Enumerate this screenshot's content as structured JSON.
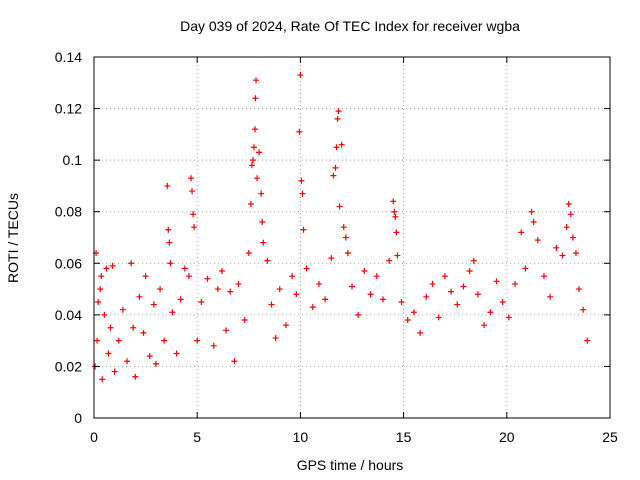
{
  "chart_data": {
    "type": "scatter",
    "title": "Day 039 of 2024, Rate Of TEC Index for receiver wgba",
    "xlabel": "GPS time / hours",
    "ylabel": "ROTI / TECUs",
    "xlim": [
      0,
      25
    ],
    "ylim": [
      0,
      0.14
    ],
    "x_ticks": [
      0,
      5,
      10,
      15,
      20,
      25
    ],
    "y_ticks": [
      0,
      0.02,
      0.04,
      0.06,
      0.08,
      0.1,
      0.12,
      0.14
    ],
    "x_tick_labels": [
      "0",
      "5",
      "10",
      "15",
      "20",
      "25"
    ],
    "y_tick_labels": [
      "0",
      "0.02",
      "0.04",
      "0.06",
      "0.08",
      "0.1",
      "0.12",
      "0.14"
    ],
    "grid": true,
    "marker": "+",
    "color": "#ff0000",
    "series": [
      {
        "name": "ROTI",
        "points": [
          [
            0.05,
            0.02
          ],
          [
            0.1,
            0.064
          ],
          [
            0.15,
            0.03
          ],
          [
            0.2,
            0.045
          ],
          [
            0.3,
            0.05
          ],
          [
            0.35,
            0.055
          ],
          [
            0.4,
            0.015
          ],
          [
            0.5,
            0.04
          ],
          [
            0.6,
            0.058
          ],
          [
            0.7,
            0.025
          ],
          [
            0.8,
            0.035
          ],
          [
            0.9,
            0.059
          ],
          [
            1.0,
            0.018
          ],
          [
            1.2,
            0.03
          ],
          [
            1.4,
            0.042
          ],
          [
            1.6,
            0.022
          ],
          [
            1.8,
            0.06
          ],
          [
            1.9,
            0.035
          ],
          [
            2.0,
            0.016
          ],
          [
            2.2,
            0.047
          ],
          [
            2.4,
            0.033
          ],
          [
            2.5,
            0.055
          ],
          [
            2.7,
            0.024
          ],
          [
            2.9,
            0.044
          ],
          [
            3.0,
            0.021
          ],
          [
            3.2,
            0.05
          ],
          [
            3.4,
            0.03
          ],
          [
            3.55,
            0.09
          ],
          [
            3.6,
            0.073
          ],
          [
            3.65,
            0.068
          ],
          [
            3.7,
            0.06
          ],
          [
            3.8,
            0.041
          ],
          [
            4.0,
            0.025
          ],
          [
            4.2,
            0.046
          ],
          [
            4.4,
            0.058
          ],
          [
            4.6,
            0.055
          ],
          [
            4.7,
            0.093
          ],
          [
            4.75,
            0.088
          ],
          [
            4.8,
            0.079
          ],
          [
            4.85,
            0.074
          ],
          [
            5.0,
            0.03
          ],
          [
            5.2,
            0.045
          ],
          [
            5.5,
            0.054
          ],
          [
            5.8,
            0.028
          ],
          [
            6.0,
            0.05
          ],
          [
            6.2,
            0.057
          ],
          [
            6.4,
            0.034
          ],
          [
            6.6,
            0.049
          ],
          [
            6.8,
            0.022
          ],
          [
            7.0,
            0.052
          ],
          [
            7.3,
            0.038
          ],
          [
            7.5,
            0.064
          ],
          [
            7.6,
            0.083
          ],
          [
            7.65,
            0.098
          ],
          [
            7.7,
            0.1
          ],
          [
            7.75,
            0.105
          ],
          [
            7.8,
            0.112
          ],
          [
            7.82,
            0.124
          ],
          [
            7.85,
            0.131
          ],
          [
            7.9,
            0.093
          ],
          [
            8.0,
            0.103
          ],
          [
            8.1,
            0.087
          ],
          [
            8.15,
            0.076
          ],
          [
            8.2,
            0.068
          ],
          [
            8.4,
            0.061
          ],
          [
            8.6,
            0.044
          ],
          [
            8.8,
            0.031
          ],
          [
            9.0,
            0.05
          ],
          [
            9.3,
            0.036
          ],
          [
            9.6,
            0.055
          ],
          [
            9.8,
            0.048
          ],
          [
            9.95,
            0.111
          ],
          [
            10.0,
            0.133
          ],
          [
            10.05,
            0.092
          ],
          [
            10.1,
            0.087
          ],
          [
            10.15,
            0.073
          ],
          [
            10.3,
            0.058
          ],
          [
            10.6,
            0.043
          ],
          [
            10.9,
            0.052
          ],
          [
            11.2,
            0.046
          ],
          [
            11.5,
            0.062
          ],
          [
            11.6,
            0.094
          ],
          [
            11.7,
            0.097
          ],
          [
            11.75,
            0.105
          ],
          [
            11.8,
            0.116
          ],
          [
            11.85,
            0.119
          ],
          [
            11.9,
            0.082
          ],
          [
            12.0,
            0.106
          ],
          [
            12.1,
            0.074
          ],
          [
            12.2,
            0.07
          ],
          [
            12.3,
            0.064
          ],
          [
            12.5,
            0.051
          ],
          [
            12.8,
            0.04
          ],
          [
            13.1,
            0.057
          ],
          [
            13.4,
            0.048
          ],
          [
            13.7,
            0.055
          ],
          [
            14.0,
            0.046
          ],
          [
            14.3,
            0.061
          ],
          [
            14.5,
            0.084
          ],
          [
            14.55,
            0.08
          ],
          [
            14.6,
            0.078
          ],
          [
            14.65,
            0.072
          ],
          [
            14.7,
            0.063
          ],
          [
            14.9,
            0.045
          ],
          [
            15.2,
            0.038
          ],
          [
            15.5,
            0.041
          ],
          [
            15.8,
            0.033
          ],
          [
            16.1,
            0.047
          ],
          [
            16.4,
            0.052
          ],
          [
            16.7,
            0.039
          ],
          [
            17.0,
            0.055
          ],
          [
            17.3,
            0.049
          ],
          [
            17.6,
            0.044
          ],
          [
            17.9,
            0.051
          ],
          [
            18.2,
            0.057
          ],
          [
            18.4,
            0.061
          ],
          [
            18.6,
            0.048
          ],
          [
            18.9,
            0.036
          ],
          [
            19.2,
            0.041
          ],
          [
            19.5,
            0.053
          ],
          [
            19.8,
            0.045
          ],
          [
            20.1,
            0.039
          ],
          [
            20.4,
            0.052
          ],
          [
            20.7,
            0.072
          ],
          [
            20.9,
            0.058
          ],
          [
            21.2,
            0.08
          ],
          [
            21.3,
            0.076
          ],
          [
            21.5,
            0.069
          ],
          [
            21.8,
            0.055
          ],
          [
            22.1,
            0.047
          ],
          [
            22.4,
            0.066
          ],
          [
            22.7,
            0.063
          ],
          [
            22.9,
            0.074
          ],
          [
            23.0,
            0.083
          ],
          [
            23.1,
            0.079
          ],
          [
            23.2,
            0.07
          ],
          [
            23.35,
            0.064
          ],
          [
            23.5,
            0.05
          ],
          [
            23.7,
            0.042
          ],
          [
            23.9,
            0.03
          ]
        ]
      }
    ]
  }
}
